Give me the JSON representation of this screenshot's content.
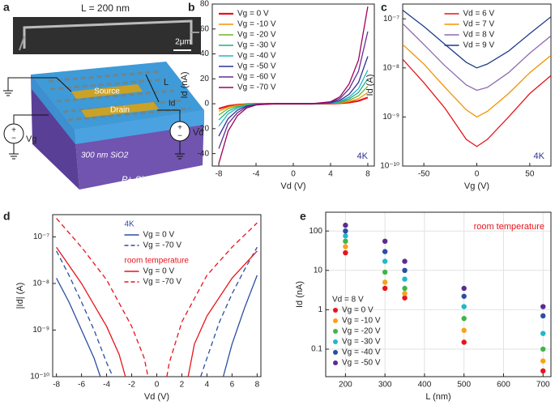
{
  "panel_a": {
    "label": "a",
    "sem_label": "L = 200 nm",
    "scale_bar": "2μm",
    "source": "Source",
    "drain": "Drain",
    "length": "L",
    "current": "Id",
    "gate_voltage": "Vg",
    "drain_voltage": "Vd",
    "oxide": "300 nm SiO2",
    "substrate": "P+ Si"
  },
  "chart_data": [
    {
      "type": "line",
      "label": "b",
      "xlabel": "Vd (V)",
      "ylabel": "Id (nA)",
      "x": [
        -8,
        -7,
        -6,
        -5,
        -4,
        -2,
        0,
        2,
        4,
        5,
        6,
        7,
        8
      ],
      "xlim": [
        -8.7,
        8.7
      ],
      "xticks": [
        -8,
        -4,
        0,
        4,
        8
      ],
      "ylim": [
        -50,
        80
      ],
      "yticks": [
        -40,
        -20,
        0,
        20,
        40,
        60,
        80
      ],
      "legend": "upper left",
      "annotations": [
        {
          "text": "4K",
          "color": "#2e3192"
        }
      ],
      "series": [
        {
          "name": "Vg = 0 V",
          "color": "#e8131b",
          "linewidth": 2.2,
          "values": [
            -4,
            -1.8,
            -0.8,
            -0.3,
            -0.1,
            0,
            0,
            0,
            0.1,
            0.4,
            1,
            2.3,
            5
          ]
        },
        {
          "name": "Vg = -10 V",
          "color": "#f39200",
          "values": [
            -6,
            -2.7,
            -1.2,
            -0.4,
            -0.1,
            0,
            0,
            0,
            0.2,
            0.6,
            1.8,
            4,
            9
          ]
        },
        {
          "name": "Vg = -20 V",
          "color": "#6fb52c",
          "values": [
            -9,
            -4,
            -1.8,
            -0.6,
            -0.2,
            0,
            0,
            0,
            0.3,
            1,
            2.8,
            6.3,
            14
          ]
        },
        {
          "name": "Vg = -30 V",
          "color": "#1fae8a",
          "values": [
            -13,
            -5.9,
            -2.6,
            -0.9,
            -0.3,
            0,
            0,
            0,
            0.4,
            1.4,
            4,
            9,
            20
          ]
        },
        {
          "name": "Vg = -40 V",
          "color": "#25b5c8",
          "values": [
            -18,
            -8.1,
            -3.6,
            -1.3,
            -0.4,
            0,
            0,
            0,
            0.5,
            1.9,
            5.4,
            12,
            27
          ]
        },
        {
          "name": "Vg = -50 V",
          "color": "#2e3192",
          "values": [
            -26,
            -12,
            -5.2,
            -1.8,
            -0.5,
            0,
            0,
            0,
            0.8,
            2.7,
            7.6,
            17,
            38
          ]
        },
        {
          "name": "Vg = -60 V",
          "color": "#662d91",
          "values": [
            -36,
            -16,
            -7.2,
            -2.5,
            -0.7,
            0,
            0,
            0,
            1.2,
            4.1,
            12,
            26,
            58
          ]
        },
        {
          "name": "Vg = -70 V",
          "color": "#9e005d",
          "values": [
            -48,
            -22,
            -9.6,
            -3.4,
            -1,
            0,
            0,
            0,
            1.6,
            5.5,
            16,
            35,
            78
          ]
        }
      ]
    },
    {
      "type": "line",
      "label": "c",
      "xlabel": "Vg (V)",
      "ylabel": "Id (A)",
      "yscale": "log",
      "x": [
        -70,
        -50,
        -30,
        -10,
        0,
        10,
        30,
        50,
        70
      ],
      "xlim": [
        -70,
        70
      ],
      "xticks": [
        -50,
        0,
        50
      ],
      "ylim": [
        1e-10,
        2e-07
      ],
      "yticks": [
        {
          "value": 1e-10,
          "label": "10⁻¹⁰"
        },
        {
          "value": 1e-09,
          "label": "10⁻⁹"
        },
        {
          "value": 1e-08,
          "label": "10⁻⁸"
        },
        {
          "value": 1e-07,
          "label": "10⁻⁷"
        }
      ],
      "legend": "upper center",
      "annotations": [
        {
          "text": "4K",
          "color": "#2e3192"
        }
      ],
      "series": [
        {
          "name": "Vd = 6 V",
          "color": "#e8131b",
          "values": [
            1.5e-08,
            5e-09,
            1.5e-09,
            3.5e-10,
            2.5e-10,
            3.5e-10,
            1e-09,
            3e-09,
            7e-09
          ]
        },
        {
          "name": "Vd = 7 V",
          "color": "#f39200",
          "values": [
            3e-08,
            1.2e-08,
            4e-09,
            1.4e-09,
            1e-09,
            1.3e-09,
            3e-09,
            8e-09,
            1.8e-08
          ]
        },
        {
          "name": "Vd = 8 V",
          "color": "#8c6bb1",
          "values": [
            8e-08,
            3e-08,
            1.1e-08,
            4.5e-09,
            3.5e-09,
            4e-09,
            8e-09,
            2e-08,
            4.5e-08
          ]
        },
        {
          "name": "Vd = 9 V",
          "color": "#1f3c88",
          "values": [
            1.5e-07,
            7e-08,
            3e-08,
            1.3e-08,
            1e-08,
            1.2e-08,
            2.2e-08,
            5e-08,
            1.1e-07
          ]
        }
      ]
    },
    {
      "type": "line",
      "label": "d",
      "xlabel": "Vd (V)",
      "ylabel": "|Id| (A)",
      "yscale": "log",
      "xlim": [
        -8.3,
        8.3
      ],
      "xticks": [
        -8,
        -6,
        -4,
        -2,
        0,
        2,
        4,
        6,
        8
      ],
      "ylim": [
        1e-10,
        3e-07
      ],
      "yticks": [
        {
          "value": 1e-10,
          "label": "10⁻¹⁰"
        },
        {
          "value": 1e-09,
          "label": "10⁻⁹"
        },
        {
          "value": 1e-08,
          "label": "10⁻⁸"
        },
        {
          "value": 1e-07,
          "label": "10⁻⁷"
        }
      ],
      "legend": "upper center",
      "series": [
        {
          "name": "Vg = 0 V",
          "group": "4K",
          "color": "#2b4ea2",
          "x": [
            -8,
            -7,
            -6,
            -5,
            -4.5,
            null,
            5.3,
            6,
            7,
            8
          ],
          "values": [
            1.3e-08,
            4e-09,
            1e-09,
            2.5e-10,
            1e-10,
            null,
            1e-10,
            5e-10,
            3e-09,
            1.5e-08
          ]
        },
        {
          "name": "Vg = -70 V",
          "group": "4K",
          "color": "#2b4ea2",
          "linestyle": "dashed",
          "x": [
            -8,
            -7,
            -6,
            -5,
            -4,
            -3.5,
            null,
            3.5,
            4,
            5,
            6,
            7,
            8
          ],
          "values": [
            5e-08,
            1.5e-08,
            4e-09,
            1e-09,
            2e-10,
            1e-10,
            null,
            1e-10,
            2.5e-10,
            1.5e-09,
            6e-09,
            2e-08,
            6e-08
          ]
        },
        {
          "name": "Vg = 0 V",
          "group": "room temperature",
          "color": "#e8131b",
          "x": [
            -8,
            -6,
            -4,
            -3,
            -2.5,
            null,
            2.5,
            3,
            4,
            6,
            8
          ],
          "values": [
            6e-08,
            1e-08,
            1.2e-09,
            3e-10,
            1e-10,
            null,
            1e-10,
            5e-10,
            2e-09,
            1.3e-08,
            5e-08
          ]
        },
        {
          "name": "Vg = -70 V",
          "group": "room temperature",
          "color": "#e8131b",
          "linestyle": "dashed",
          "x": [
            -8,
            -6,
            -4,
            -2,
            -1,
            -0.7,
            null,
            0.8,
            1,
            2,
            4,
            6,
            8
          ],
          "values": [
            2.5e-07,
            6e-08,
            1.2e-08,
            1.2e-09,
            2.5e-10,
            1e-10,
            null,
            1e-10,
            2e-10,
            1.5e-09,
            1.5e-08,
            6e-08,
            2e-07
          ]
        }
      ]
    },
    {
      "type": "scatter",
      "label": "e",
      "xlabel": "L (nm)",
      "ylabel": "Id (nA)",
      "yscale": "log",
      "grid": true,
      "x": [
        200,
        300,
        350,
        500,
        700
      ],
      "xlim": [
        150,
        720
      ],
      "xticks": [
        200,
        300,
        400,
        500,
        600,
        700
      ],
      "ylim": [
        0.02,
        300
      ],
      "yticks": [
        0.1,
        1,
        10,
        100
      ],
      "legend": "lower left",
      "legend_title": "Vd = 8 V",
      "annotations": [
        {
          "text": "room temperature",
          "color": "#e8131b"
        }
      ],
      "series": [
        {
          "name": "Vg = 0 V",
          "color": "#e8131b",
          "values": [
            28,
            3.5,
            2,
            0.15,
            0.028
          ]
        },
        {
          "name": "Vg = -10 V",
          "color": "#f7a21b",
          "values": [
            40,
            5,
            2.6,
            0.3,
            0.05
          ]
        },
        {
          "name": "Vg = -20 V",
          "color": "#3fb549",
          "values": [
            55,
            9,
            3.5,
            0.6,
            0.1
          ]
        },
        {
          "name": "Vg = -30 V",
          "color": "#22b8c9",
          "values": [
            75,
            17,
            6,
            1.2,
            0.25
          ]
        },
        {
          "name": "Vg = -40 V",
          "color": "#2b4ea2",
          "values": [
            100,
            30,
            10,
            2.2,
            0.7
          ]
        },
        {
          "name": "Vg = -50 V",
          "color": "#5b2c8f",
          "values": [
            140,
            55,
            17,
            3.5,
            1.2
          ]
        }
      ]
    }
  ]
}
